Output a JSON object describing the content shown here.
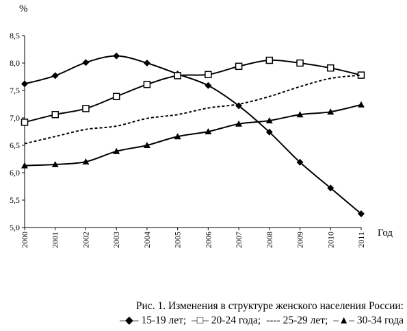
{
  "chart_data": {
    "type": "line",
    "y_unit": "%",
    "xlabel": "Год",
    "ylabel": "",
    "ylim": [
      5.0,
      8.5
    ],
    "yticks": [
      "5,0",
      "5,5",
      "6,0",
      "6,5",
      "7,0",
      "7,5",
      "8,0",
      "8,5"
    ],
    "x": [
      "2000",
      "2001",
      "2002",
      "2003",
      "2004",
      "2005",
      "2006",
      "2007",
      "2008",
      "2009",
      "2010",
      "2011"
    ],
    "grid": false,
    "series": [
      {
        "name": "15-19 лет",
        "marker": "diamond",
        "style": "solid",
        "values": [
          7.62,
          7.77,
          8.01,
          8.13,
          8.0,
          7.8,
          7.59,
          7.22,
          6.74,
          6.19,
          5.72,
          5.25
        ]
      },
      {
        "name": "20-24 года",
        "marker": "square-open",
        "style": "solid",
        "values": [
          6.92,
          7.06,
          7.17,
          7.39,
          7.61,
          7.77,
          7.79,
          7.94,
          8.05,
          8.0,
          7.91,
          7.78
        ]
      },
      {
        "name": "25-29 лет",
        "marker": "none",
        "style": "dashed",
        "values": [
          6.53,
          6.66,
          6.79,
          6.85,
          6.99,
          7.06,
          7.18,
          7.25,
          7.39,
          7.57,
          7.72,
          7.78
        ]
      },
      {
        "name": "30-34 года",
        "marker": "triangle",
        "style": "solid",
        "values": [
          6.13,
          6.15,
          6.2,
          6.39,
          6.5,
          6.66,
          6.75,
          6.89,
          6.95,
          7.06,
          7.11,
          7.24
        ]
      }
    ]
  },
  "caption": {
    "title": "Рис. 1. Изменения в структуре женского населения России:",
    "legend": [
      {
        "marker_text": "–◆–",
        "label": "15-19 лет;"
      },
      {
        "marker_text": "–□–",
        "label": "20-24 года;"
      },
      {
        "marker_text": "----",
        "label": "25-29 лет;"
      },
      {
        "marker_text": "–▲–",
        "label": "30-34 года"
      }
    ]
  }
}
